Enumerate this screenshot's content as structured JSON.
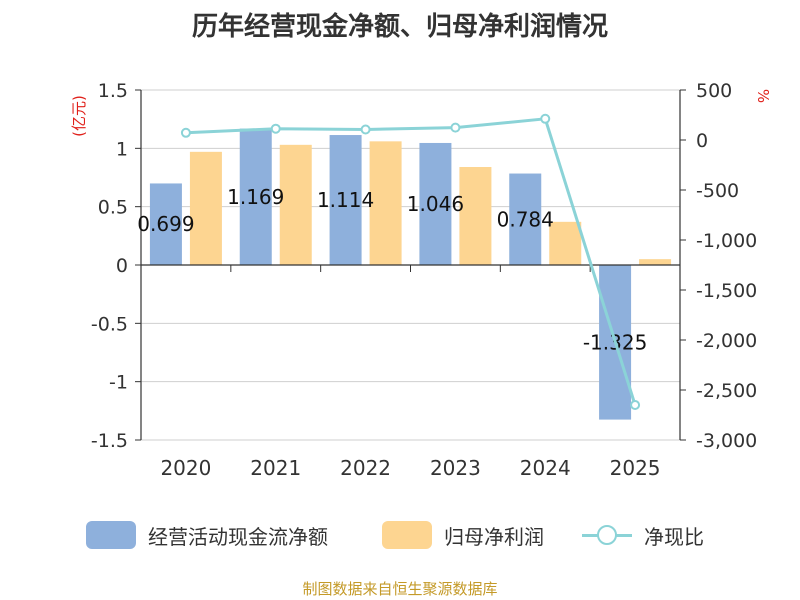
{
  "chart_data": {
    "type": "bar",
    "title": "历年经营现金净额、归母净利润情况",
    "categories": [
      "2020",
      "2021",
      "2022",
      "2023",
      "2024",
      "2025"
    ],
    "series": [
      {
        "name": "经营活动现金流净额",
        "type": "bar",
        "axis": "left",
        "color": "#8eb0dc",
        "values": [
          0.699,
          1.169,
          1.114,
          1.046,
          0.784,
          -1.325
        ],
        "labels": [
          "0.699",
          "1.169",
          "1.114",
          "1.046",
          "0.784",
          "-1.325"
        ]
      },
      {
        "name": "归母净利润",
        "type": "bar",
        "axis": "left",
        "color": "#fdd591",
        "values": [
          0.97,
          1.03,
          1.06,
          0.84,
          0.37,
          0.05
        ]
      },
      {
        "name": "净现比",
        "type": "line",
        "axis": "right",
        "color": "#8bd3d7",
        "values": [
          72,
          113,
          105,
          124,
          212,
          -2650
        ]
      }
    ],
    "y_left": {
      "label": "(亿元)",
      "ylim": [
        -1.5,
        1.5
      ],
      "ticks": [
        1.5,
        1,
        0.5,
        0,
        -0.5,
        -1,
        -1.5
      ],
      "tick_labels": [
        "1.5",
        "1",
        "0.5",
        "0",
        "-0.5",
        "-1",
        "-1.5"
      ]
    },
    "y_right": {
      "label": "%",
      "ylim": [
        -3000,
        500
      ],
      "ticks": [
        500,
        0,
        -500,
        -1000,
        -1500,
        -2000,
        -2500,
        -3000
      ],
      "tick_labels": [
        "500",
        "0",
        "-500",
        "-1,000",
        "-1,500",
        "-2,000",
        "-2,500",
        "-3,000"
      ]
    },
    "grid": true,
    "legend_position": "bottom",
    "source": "制图数据来自恒生聚源数据库"
  }
}
